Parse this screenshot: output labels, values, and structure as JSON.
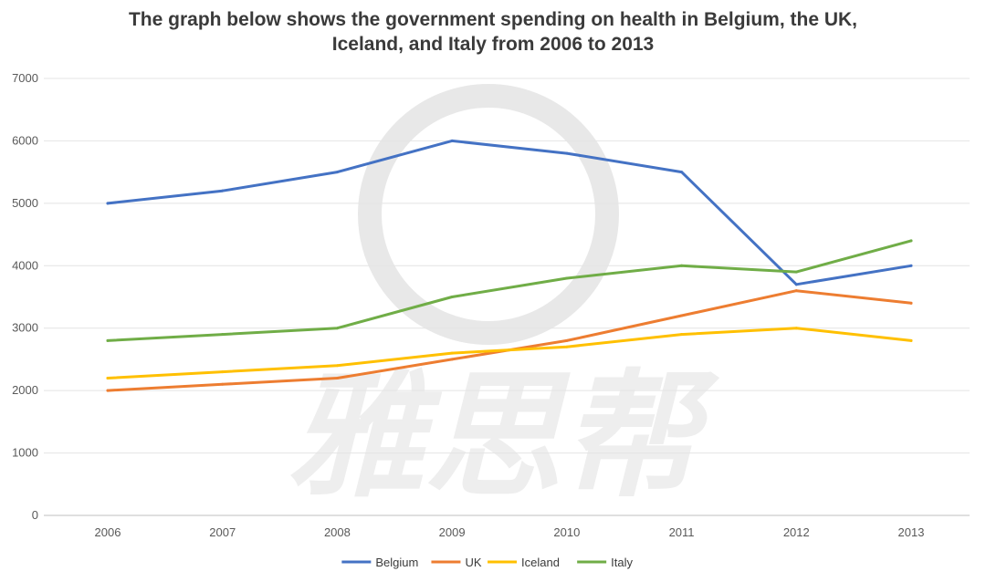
{
  "chart_data": {
    "type": "line",
    "title_lines": [
      "The  graph below shows the government spending on health in Belgium, the UK,",
      "Iceland, and Italy from 2006 to 2013"
    ],
    "xlabel": "",
    "ylabel": "",
    "categories": [
      "2006",
      "2007",
      "2008",
      "2009",
      "2010",
      "2011",
      "2012",
      "2013"
    ],
    "ylim": [
      0,
      7000
    ],
    "yticks": [
      0,
      1000,
      2000,
      3000,
      4000,
      5000,
      6000,
      7000
    ],
    "grid": true,
    "legend_position": "bottom",
    "series": [
      {
        "name": "Belgium",
        "color": "#4472c4",
        "values": [
          5000,
          5200,
          5500,
          6000,
          5800,
          5500,
          3700,
          4000
        ]
      },
      {
        "name": "UK",
        "color": "#ed7d31",
        "values": [
          2000,
          2100,
          2200,
          2500,
          2800,
          3200,
          3600,
          3400
        ]
      },
      {
        "name": "Iceland",
        "color": "#ffc000",
        "values": [
          2200,
          2300,
          2400,
          2600,
          2700,
          2900,
          3000,
          2800
        ]
      },
      {
        "name": "Italy",
        "color": "#70ad47",
        "values": [
          2800,
          2900,
          3000,
          3500,
          3800,
          4000,
          3900,
          4400
        ]
      }
    ],
    "watermark_text": "雅思帮"
  }
}
